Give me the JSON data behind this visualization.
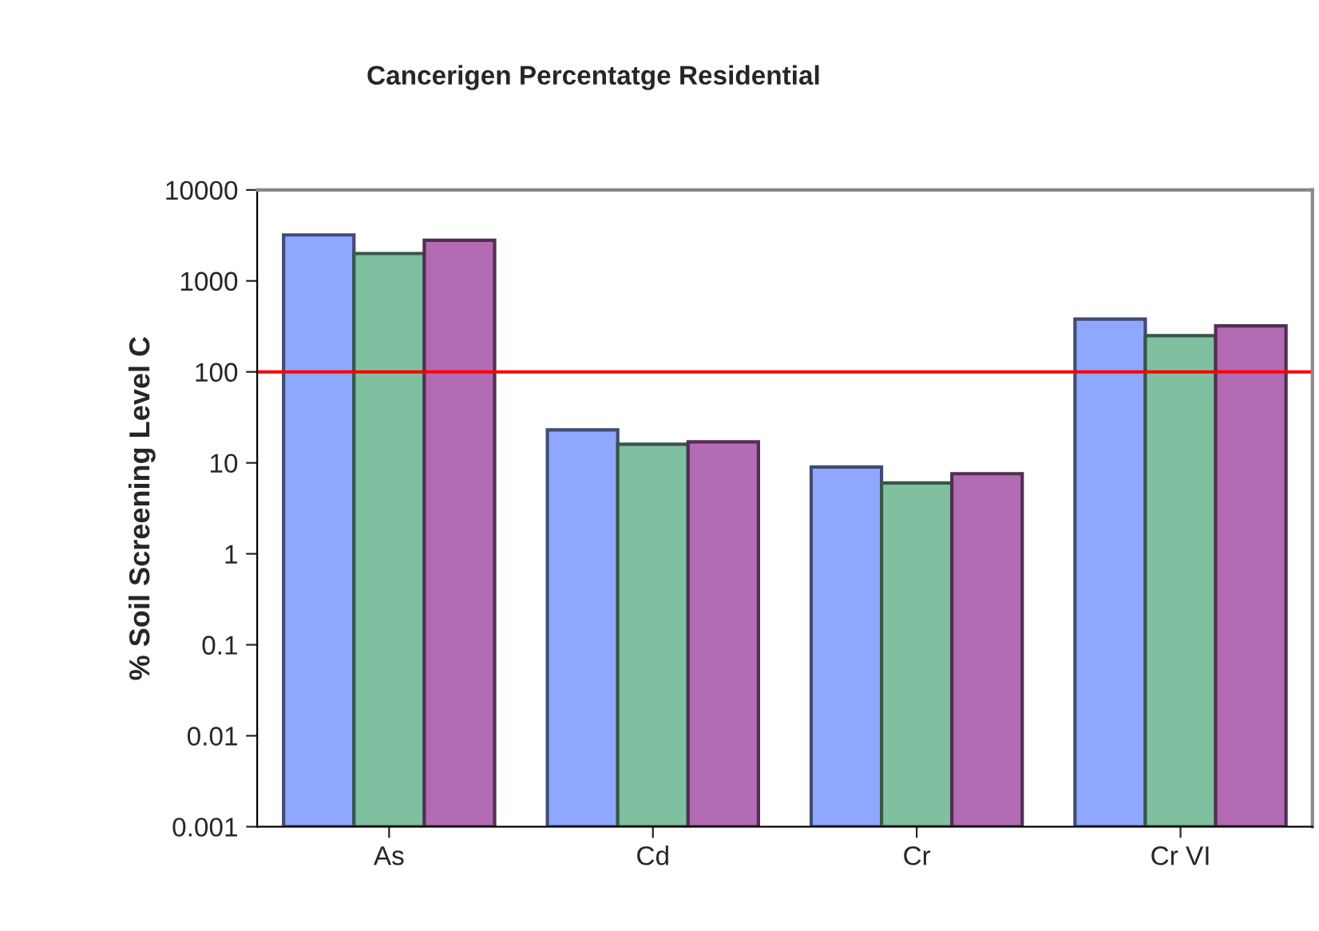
{
  "chart_data": {
    "type": "bar",
    "title": "Cancerigen Percentatge Residential",
    "ylabel": "% Soil Screening Level C",
    "categories": [
      "As",
      "Cd",
      "Cr",
      "Cr VI"
    ],
    "series": [
      {
        "color": "#8fa8ff",
        "values": [
          3200,
          23,
          9,
          380
        ]
      },
      {
        "color": "#7fc0a0",
        "values": [
          2000,
          16,
          6,
          250
        ]
      },
      {
        "color": "#b36bb3",
        "values": [
          2800,
          17,
          7.6,
          320
        ]
      }
    ],
    "log": true,
    "ylim": [
      0.001,
      10000
    ],
    "yticks": [
      0.001,
      0.01,
      0.1,
      1,
      10,
      100,
      1000,
      10000
    ],
    "grid": false,
    "legend": false,
    "ref_lines": [
      {
        "axis": "y",
        "value": 100,
        "color": "#ff0000",
        "line_style": "solid"
      }
    ]
  }
}
